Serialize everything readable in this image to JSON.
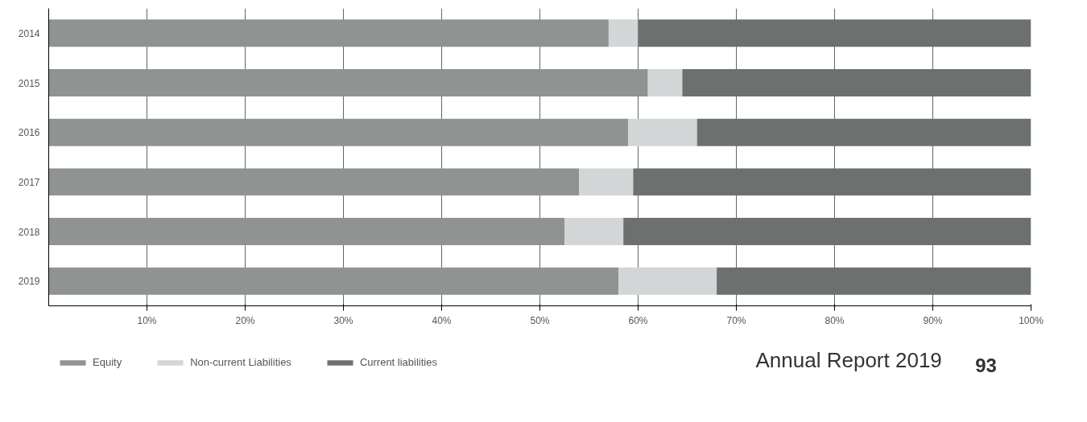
{
  "chart_data": {
    "type": "bar",
    "orientation": "horizontal",
    "stacked": true,
    "categories": [
      "2014",
      "2015",
      "2016",
      "2017",
      "2018",
      "2019"
    ],
    "series": [
      {
        "name": "Equity",
        "color": "#8f9391",
        "values": [
          57,
          61,
          59,
          54,
          52.5,
          58
        ]
      },
      {
        "name": "Non-current Liabilities",
        "color": "#d3d6d6",
        "values": [
          3,
          3.5,
          7,
          5.5,
          6,
          10
        ]
      },
      {
        "name": "Current liabilities",
        "color": "#6c706f",
        "values": [
          40,
          35.5,
          34,
          40.5,
          41.5,
          32
        ]
      }
    ],
    "xlim": [
      0,
      100
    ],
    "xticks": [
      {
        "value": 10,
        "label": "10%"
      },
      {
        "value": 20,
        "label": "20%"
      },
      {
        "value": 30,
        "label": "30%"
      },
      {
        "value": 40,
        "label": "40%"
      },
      {
        "value": 50,
        "label": "50%"
      },
      {
        "value": 60,
        "label": "60%"
      },
      {
        "value": 70,
        "label": "70%"
      },
      {
        "value": 80,
        "label": "80%"
      },
      {
        "value": 90,
        "label": "90%"
      },
      {
        "value": 100,
        "label": "100%"
      }
    ],
    "grid": "x",
    "legend": "bottom",
    "annotations": [
      "Annual Report 2019",
      "93"
    ]
  }
}
